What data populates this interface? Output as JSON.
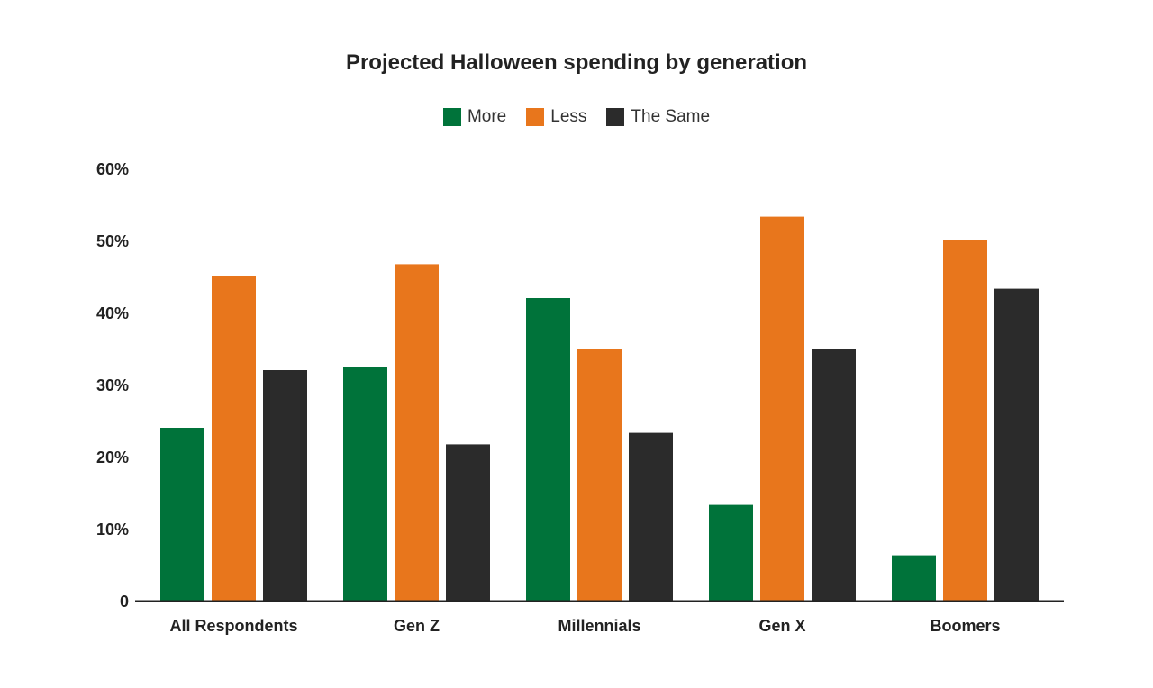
{
  "chart_data": {
    "type": "bar",
    "title": "Projected Halloween spending by generation",
    "xlabel": "",
    "ylabel": "",
    "categories": [
      "All Respondents",
      "Gen Z",
      "Millennials",
      "Gen X",
      "Boomers"
    ],
    "series": [
      {
        "name": "More",
        "color": "#00733a",
        "values": [
          24,
          32.5,
          42,
          13.3,
          6.3
        ]
      },
      {
        "name": "Less",
        "color": "#e8761c",
        "values": [
          45,
          46.7,
          35,
          53.3,
          50
        ]
      },
      {
        "name": "The Same",
        "color": "#2b2b2b",
        "values": [
          32,
          21.7,
          23.3,
          35,
          43.3
        ]
      }
    ],
    "ylim": [
      0,
      60
    ],
    "yticks": [
      {
        "value": 0,
        "label": "0"
      },
      {
        "value": 10,
        "label": "10%"
      },
      {
        "value": 20,
        "label": "20%"
      },
      {
        "value": 30,
        "label": "30%"
      },
      {
        "value": 40,
        "label": "40%"
      },
      {
        "value": 50,
        "label": "50%"
      },
      {
        "value": 60,
        "label": "60%"
      }
    ],
    "grid": false,
    "legend_position": "top-center"
  }
}
